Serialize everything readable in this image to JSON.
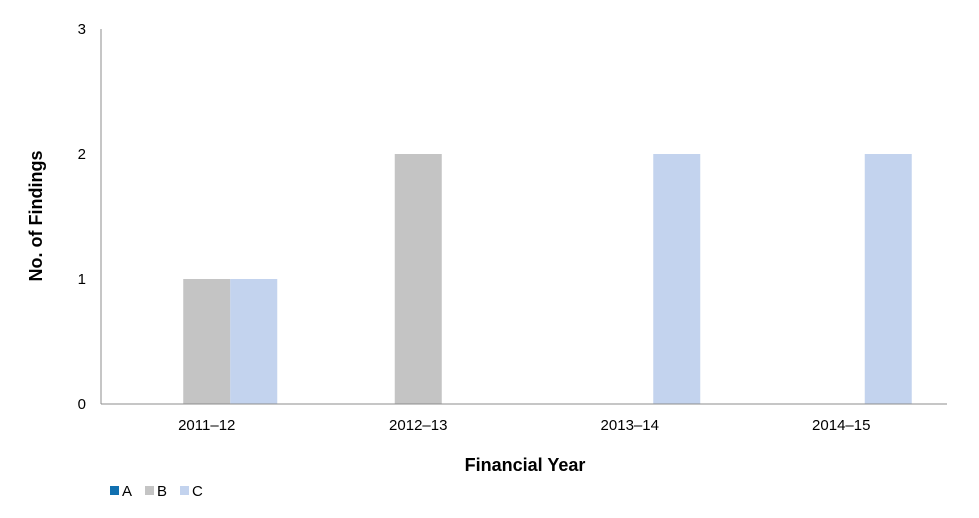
{
  "chart_data": {
    "type": "bar",
    "categories": [
      "2011–12",
      "2012–13",
      "2013–14",
      "2014–15"
    ],
    "series": [
      {
        "name": "A",
        "color": "#1170b0",
        "values": [
          0,
          0,
          0,
          0
        ]
      },
      {
        "name": "B",
        "color": "#c4c4c4",
        "values": [
          1,
          2,
          0,
          0
        ]
      },
      {
        "name": "C",
        "color": "#c3d3ee",
        "values": [
          1,
          0,
          2,
          2
        ]
      }
    ],
    "xlabel": "Financial Year",
    "ylabel": "No. of Findings",
    "ylim": [
      0,
      3
    ],
    "yticks": [
      "0",
      "1",
      "2",
      "3"
    ],
    "grid": false,
    "legend_position": "bottom-left"
  }
}
